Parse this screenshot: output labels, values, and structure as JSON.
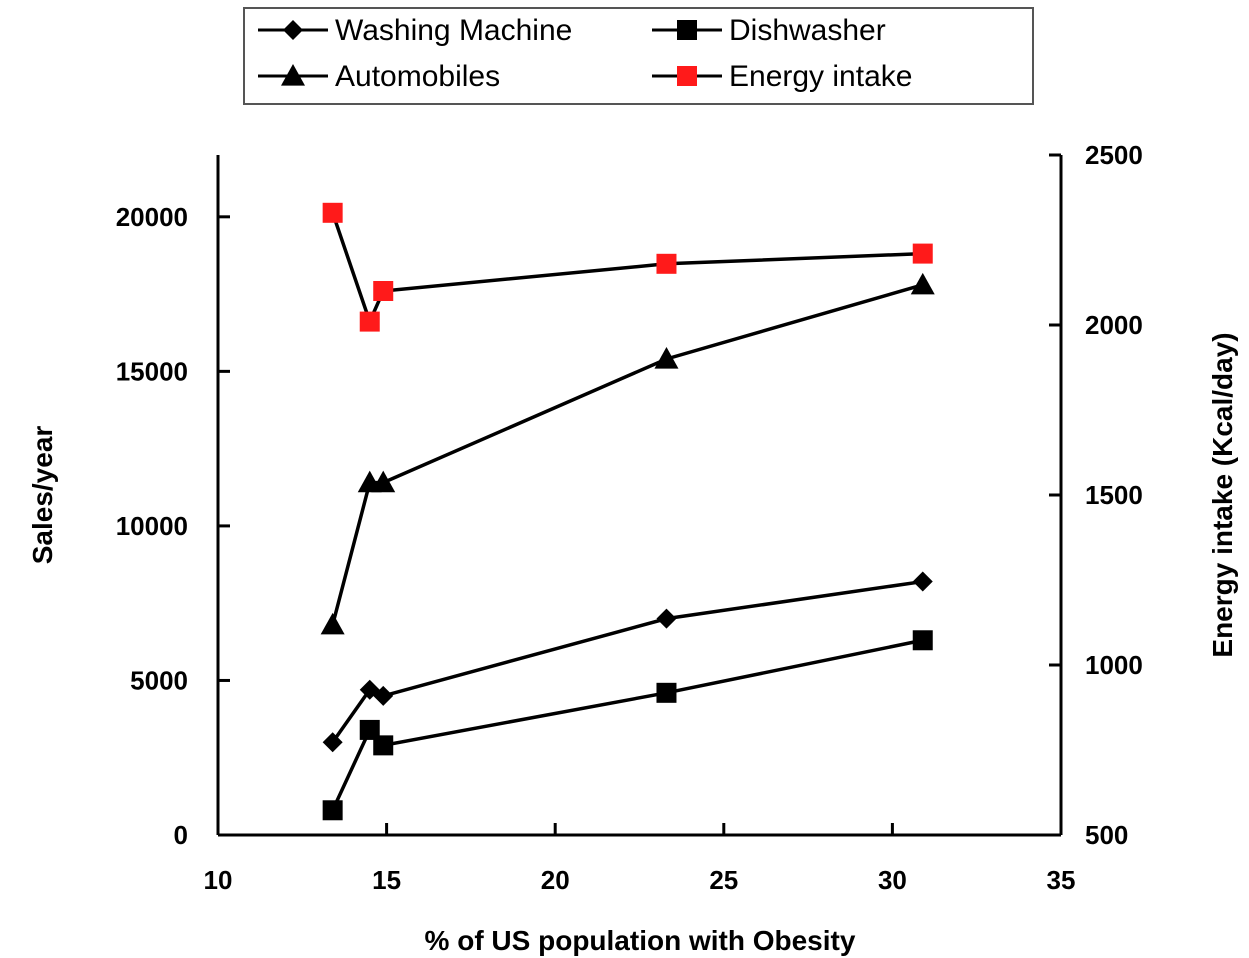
{
  "chart_data": {
    "type": "line",
    "xlabel": "% of US population with Obesity",
    "ylabel": "Sales/year",
    "y2label": "Energy intake (Kcal/day)",
    "xlim": [
      10,
      35
    ],
    "ylim": [
      0,
      22000
    ],
    "y2lim": [
      500,
      2500
    ],
    "xticks": [
      10,
      15,
      20,
      25,
      30,
      35
    ],
    "yticks": [
      0,
      5000,
      10000,
      15000,
      20000
    ],
    "y2ticks": [
      500,
      1000,
      1500,
      2000,
      2500
    ],
    "legend_position": "top-center",
    "series": [
      {
        "name": "Washing Machine",
        "axis": "left",
        "marker": "diamond",
        "color": "#000000",
        "x": [
          13.4,
          14.5,
          14.9,
          23.3,
          30.9
        ],
        "y": [
          3000,
          4700,
          4500,
          7000,
          8200
        ]
      },
      {
        "name": "Dishwasher",
        "axis": "left",
        "marker": "square",
        "color": "#000000",
        "x": [
          13.4,
          14.5,
          14.9,
          23.3,
          30.9
        ],
        "y": [
          800,
          3400,
          2900,
          4600,
          6300
        ]
      },
      {
        "name": "Automobiles",
        "axis": "left",
        "marker": "triangle",
        "color": "#000000",
        "x": [
          13.4,
          14.5,
          14.9,
          23.3,
          30.9
        ],
        "y": [
          6800,
          11400,
          11400,
          15400,
          17800
        ]
      },
      {
        "name": "Energy intake",
        "axis": "right",
        "marker": "square",
        "color": "#ff1a1a",
        "x": [
          13.4,
          14.5,
          14.9,
          23.3,
          30.9
        ],
        "y": [
          2330,
          2010,
          2100,
          2180,
          2210
        ]
      }
    ]
  }
}
